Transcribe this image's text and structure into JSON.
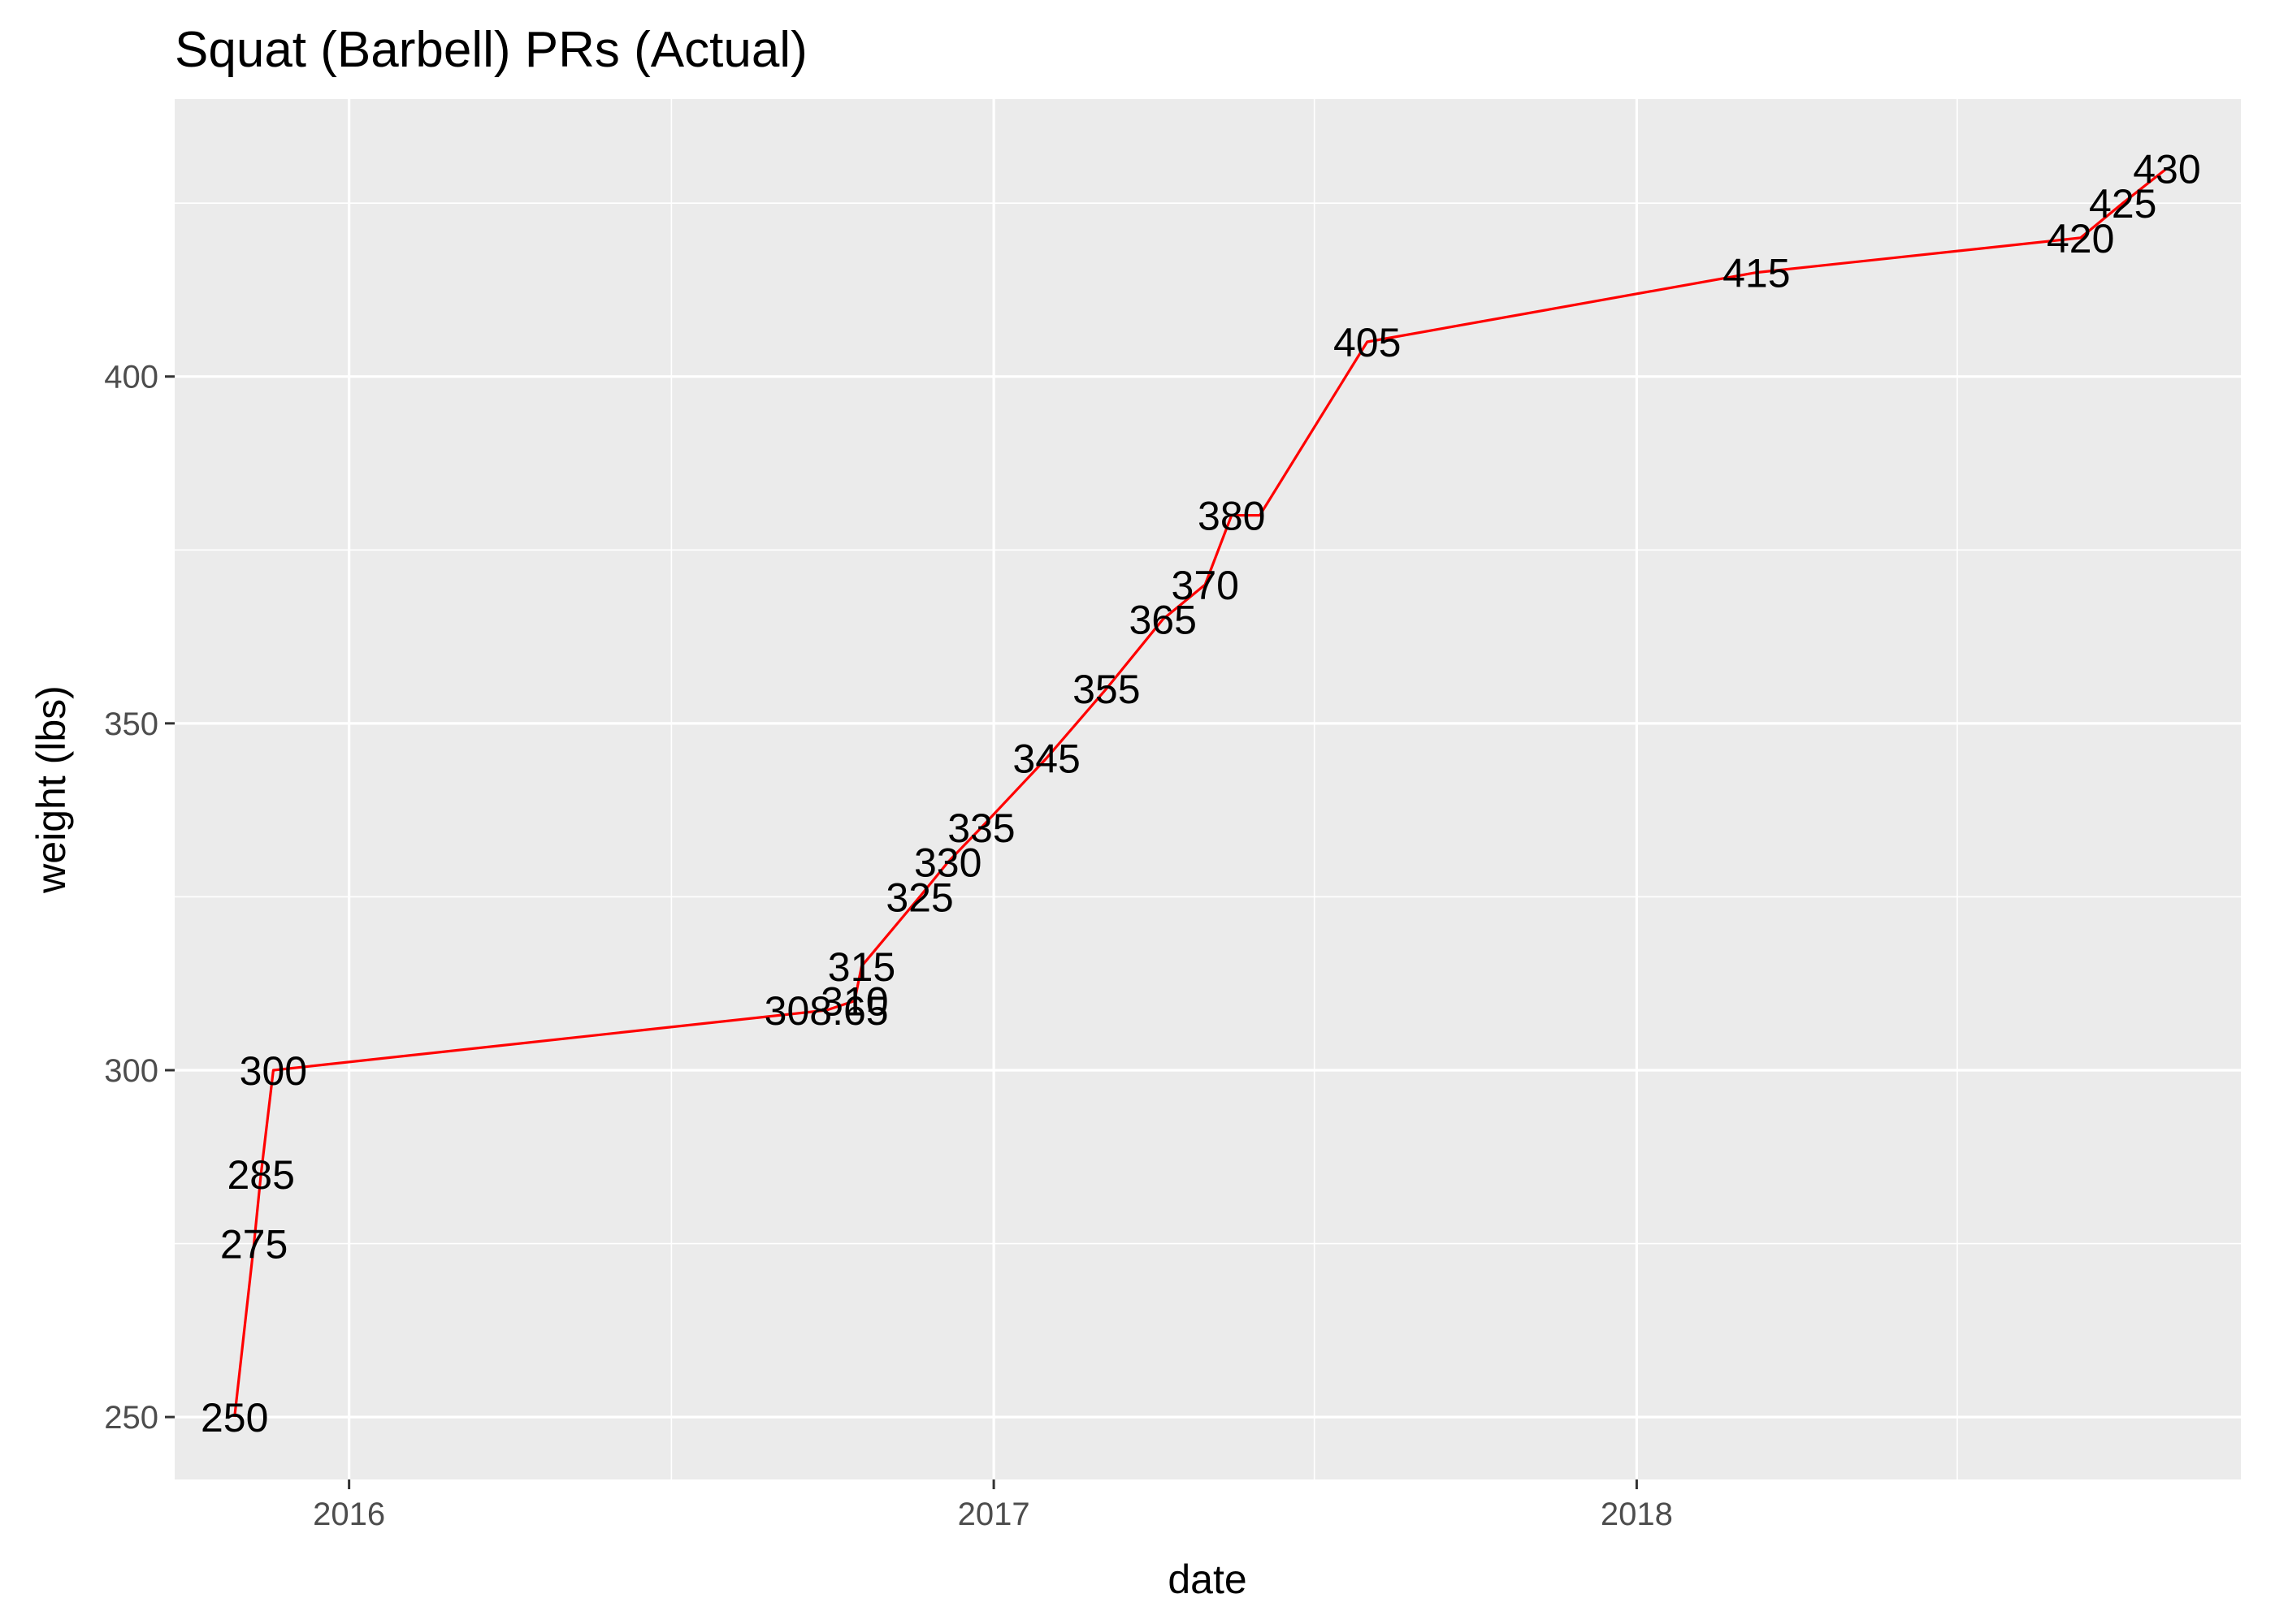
{
  "chart_data": {
    "type": "line",
    "title": "Squat (Barbell) PRs (Actual)",
    "xlabel": "date",
    "ylabel": "weight (lbs)",
    "x_type": "date",
    "xlim": [
      "2015-09-24",
      "2018-12-10"
    ],
    "ylim": [
      241,
      440
    ],
    "x_ticks": [
      {
        "date": "2016-01-01",
        "label": "2016"
      },
      {
        "date": "2017-01-01",
        "label": "2017"
      },
      {
        "date": "2018-01-01",
        "label": "2018"
      }
    ],
    "x_minor_ticks": [
      "2016-07-02",
      "2017-07-02",
      "2018-07-02"
    ],
    "y_ticks": [
      250,
      300,
      350,
      400
    ],
    "y_minor_ticks": [
      275,
      325,
      375,
      425
    ],
    "grid": true,
    "background_color": "#ebebeb",
    "grid_color": "#ffffff",
    "line_color": "#ff0000",
    "series": [
      {
        "x": [
          "2015-10-28",
          "2015-11-08",
          "2015-11-12",
          "2015-11-19",
          "2016-09-28",
          "2016-10-14",
          "2016-10-18",
          "2016-11-20",
          "2016-12-06",
          "2016-12-25",
          "2017-01-31",
          "2017-03-06",
          "2017-04-07",
          "2017-05-01",
          "2017-05-16",
          "2017-06-01",
          "2017-08-01",
          "2018-03-10",
          "2018-09-10",
          "2018-10-04",
          "2018-10-29"
        ],
        "values": [
          250,
          275,
          285,
          300,
          308.65,
          310,
          315,
          325,
          330,
          335,
          345,
          355,
          365,
          370,
          380,
          380,
          405,
          415,
          420,
          425,
          430
        ],
        "labels": [
          "250",
          "275",
          "285",
          "300",
          "308.65",
          "310",
          "315",
          "325",
          "330",
          "335",
          "345",
          "355",
          "365",
          "370",
          "380",
          "",
          "405",
          "415",
          "420",
          "425",
          "430"
        ]
      }
    ]
  }
}
